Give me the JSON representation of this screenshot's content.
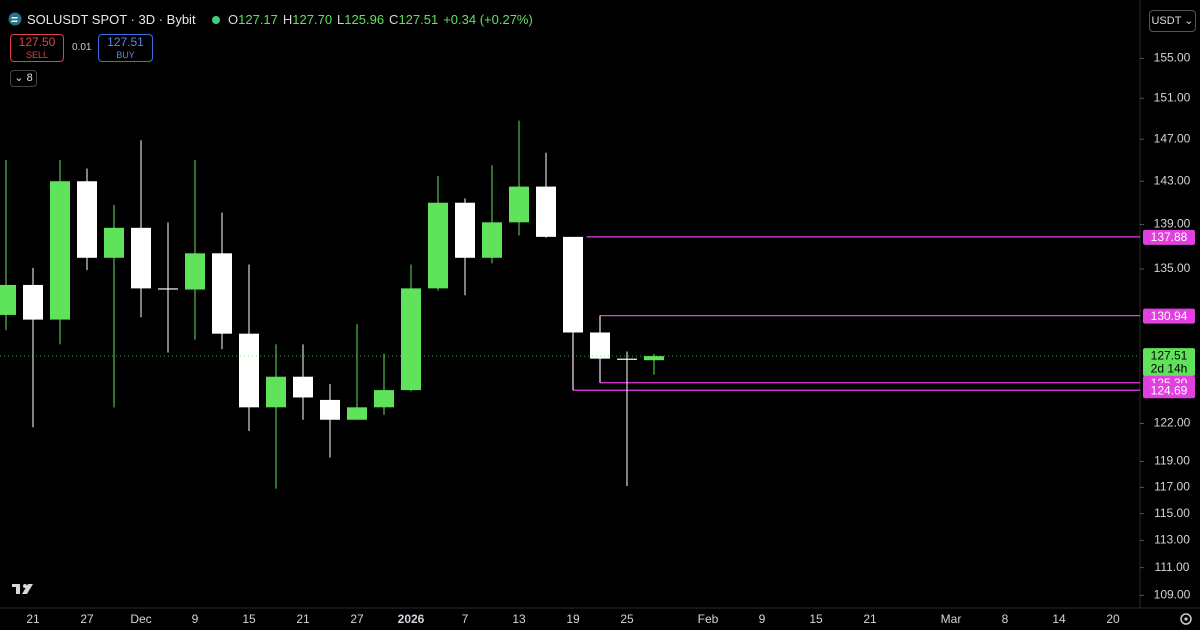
{
  "header": {
    "symbol": "SOLUSDT SPOT · 3D · Bybit",
    "ohlc": [
      {
        "letter": "O",
        "value": "127.17"
      },
      {
        "letter": "H",
        "value": "127.70"
      },
      {
        "letter": "L",
        "value": "125.96"
      },
      {
        "letter": "C",
        "value": "127.51"
      }
    ],
    "change": "+0.34 (+0.27%)",
    "sell": {
      "price": "127.50",
      "label": "SELL"
    },
    "spread": "0.01",
    "buy": {
      "price": "127.51",
      "label": "BUY"
    },
    "indicators": "8",
    "currency": "USDT"
  },
  "chart_data": {
    "type": "candlestick",
    "categories": [
      null,
      "21",
      null,
      "27",
      null,
      "Dec",
      null,
      "9",
      null,
      "15",
      null,
      "21",
      null,
      "27",
      null,
      "2026",
      null,
      "7",
      null,
      "13",
      null,
      "19",
      null,
      "25",
      null,
      null,
      "Feb",
      null,
      "9",
      null,
      "15",
      null,
      "21",
      null,
      null,
      "Mar",
      null,
      "8",
      null,
      "14",
      null,
      "20"
    ],
    "open": [
      131.0,
      133.6,
      130.6,
      143.0,
      136.0,
      138.7,
      133.3,
      133.2,
      136.4,
      129.4,
      123.3,
      125.8,
      123.9,
      122.3,
      123.3,
      124.7,
      133.3,
      141.0,
      136.0,
      139.2,
      142.5,
      137.88,
      129.5,
      127.3,
      127.17,
      null,
      null,
      null,
      null,
      null,
      null,
      null,
      null,
      null,
      null,
      null,
      null,
      null,
      null,
      null,
      null,
      null
    ],
    "high": [
      145.0,
      135.1,
      145.0,
      144.2,
      140.8,
      146.9,
      139.2,
      145.0,
      140.1,
      135.4,
      128.5,
      128.5,
      125.2,
      130.2,
      127.7,
      135.4,
      143.5,
      141.4,
      144.5,
      148.8,
      145.7,
      137.88,
      130.94,
      127.9,
      127.7,
      null,
      null,
      null,
      null,
      null,
      null,
      null,
      null,
      null,
      null,
      null,
      null,
      null,
      null,
      null,
      null,
      null
    ],
    "low": [
      129.7,
      121.7,
      128.5,
      134.9,
      123.3,
      130.8,
      127.8,
      128.9,
      128.1,
      121.4,
      116.9,
      122.3,
      119.3,
      122.3,
      122.7,
      124.6,
      133.1,
      132.7,
      135.5,
      138.0,
      137.8,
      124.69,
      125.3,
      117.1,
      125.96,
      null,
      null,
      null,
      null,
      null,
      null,
      null,
      null,
      null,
      null,
      null,
      null,
      null,
      null,
      null,
      null,
      null
    ],
    "close": [
      133.6,
      130.6,
      143.0,
      136.0,
      138.7,
      133.3,
      133.2,
      136.4,
      129.4,
      123.3,
      125.8,
      124.1,
      122.3,
      123.3,
      124.7,
      133.3,
      141.0,
      136.0,
      139.2,
      142.5,
      137.88,
      129.5,
      127.3,
      127.2,
      127.51,
      null,
      null,
      null,
      null,
      null,
      null,
      null,
      null,
      null,
      null,
      null,
      null,
      null,
      null,
      null,
      null,
      null
    ],
    "up_color": "#5fe35a",
    "down_color": "#ffffff",
    "log_scale": true,
    "ylim": [
      108.1,
      160.2
    ],
    "yticks": [
      {
        "value": 155,
        "label": "155.00"
      },
      {
        "value": 151,
        "label": "151.00"
      },
      {
        "value": 147,
        "label": "147.00"
      },
      {
        "value": 143,
        "label": "143.00"
      },
      {
        "value": 139,
        "label": "139.00"
      },
      {
        "value": 135,
        "label": "135.00"
      },
      {
        "value": 122,
        "label": "122.00"
      },
      {
        "value": 119,
        "label": "119.00"
      },
      {
        "value": 117,
        "label": "117.00"
      },
      {
        "value": 115,
        "label": "115.00"
      },
      {
        "value": 113,
        "label": "113.00"
      },
      {
        "value": 111,
        "label": "111.00"
      },
      {
        "value": 109,
        "label": "109.00"
      }
    ],
    "levels": [
      137.88,
      130.94,
      {
        "value": 125.3,
        "label": "125.30"
      },
      124.69
    ],
    "level_color": "#e23fe0",
    "last_price_countdown": "2d 14h"
  }
}
